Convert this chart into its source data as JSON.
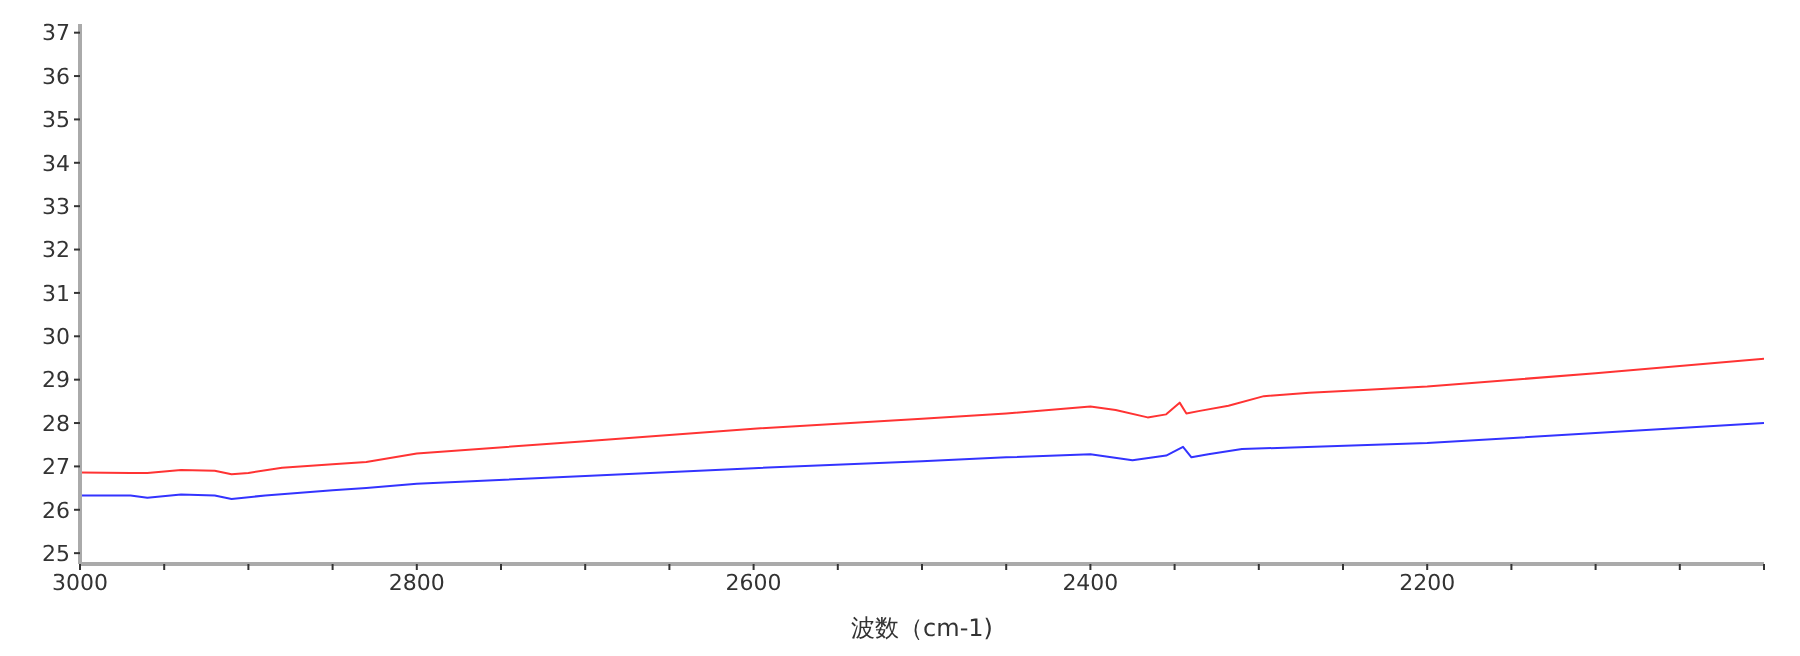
{
  "chart_data": {
    "type": "line",
    "xlabel": "波数（cm-1)",
    "xlim": [
      3000,
      2000
    ],
    "xticks": [
      3000,
      {
        "value": 2950,
        "label": null
      },
      {
        "value": 2900,
        "label": null
      },
      {
        "value": 2850,
        "label": null
      },
      2800,
      {
        "value": 2750,
        "label": null
      },
      {
        "value": 2700,
        "label": null
      },
      {
        "value": 2650,
        "label": null
      },
      2600,
      {
        "value": 2550,
        "label": null
      },
      {
        "value": 2500,
        "label": null
      },
      {
        "value": 2450,
        "label": null
      },
      2400,
      {
        "value": 2350,
        "label": null
      },
      {
        "value": 2300,
        "label": null
      },
      {
        "value": 2250,
        "label": null
      },
      2200,
      {
        "value": 2150,
        "label": null
      },
      {
        "value": 2100,
        "label": null
      },
      {
        "value": 2050,
        "label": null
      },
      {
        "value": 2000,
        "label": null
      }
    ],
    "ylim": [
      24.75,
      37.2
    ],
    "yticks": [
      25,
      26,
      27,
      28,
      29,
      30,
      31,
      32,
      33,
      34,
      35,
      36,
      37
    ],
    "grid": false,
    "marker": "none",
    "line_style": "solid",
    "series": [
      {
        "color": "#ff3333",
        "x": [
          3000,
          2970,
          2960,
          2940,
          2920,
          2910,
          2900,
          2880,
          2850,
          2830,
          2800,
          2700,
          2600,
          2500,
          2450,
          2400,
          2385,
          2366,
          2355,
          2347,
          2343,
          2335,
          2318,
          2297,
          2270,
          2238,
          2200,
          2100,
          2000
        ],
        "values": [
          26.86,
          26.85,
          26.85,
          26.92,
          26.9,
          26.82,
          26.85,
          26.97,
          27.05,
          27.1,
          27.3,
          27.58,
          27.87,
          28.1,
          28.22,
          28.38,
          28.3,
          28.13,
          28.2,
          28.47,
          28.22,
          28.28,
          28.4,
          28.62,
          28.7,
          28.76,
          28.84,
          29.15,
          29.48
        ]
      },
      {
        "color": "#3333ff",
        "x": [
          3000,
          2970,
          2960,
          2940,
          2920,
          2910,
          2890,
          2850,
          2830,
          2800,
          2700,
          2600,
          2500,
          2450,
          2400,
          2375,
          2355,
          2345,
          2340,
          2330,
          2310,
          2200,
          2100,
          2000
        ],
        "values": [
          26.33,
          26.33,
          26.28,
          26.35,
          26.33,
          26.25,
          26.33,
          26.45,
          26.5,
          26.6,
          26.78,
          26.96,
          27.12,
          27.21,
          27.28,
          27.14,
          27.25,
          27.45,
          27.21,
          27.28,
          27.4,
          27.54,
          27.77,
          28.0
        ]
      }
    ]
  }
}
